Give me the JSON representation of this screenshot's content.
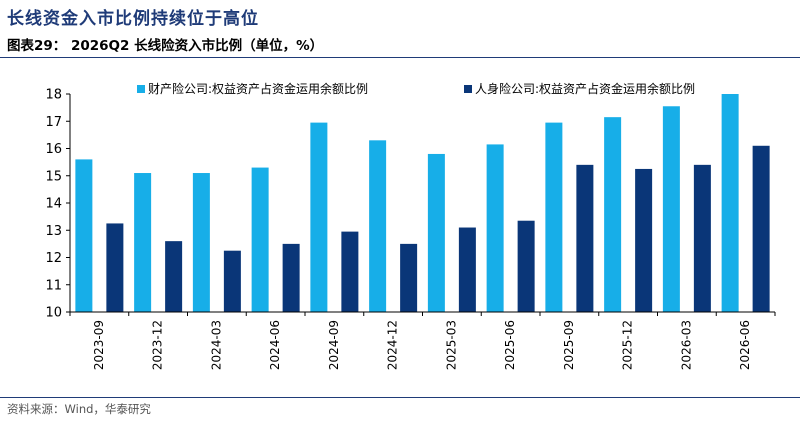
{
  "headline": "长线资金入市比例持续位于高位",
  "figure_caption": "图表29： 2026Q2 长线险资入市比例（单位，%）",
  "source": "资料来源：Wind，华泰研究",
  "colors": {
    "series1": "#17aee8",
    "series2": "#0a3678",
    "rule": "#1f3b78"
  },
  "chart_data": {
    "type": "bar",
    "categories": [
      "2023-09",
      "2023-12",
      "2024-03",
      "2024-06",
      "2024-09",
      "2024-12",
      "2025-03",
      "2025-06",
      "2025-09",
      "2025-12",
      "2026-03",
      "2026-06"
    ],
    "series": [
      {
        "name": "财产险公司:权益资产占资金运用余额比例",
        "values": [
          15.6,
          15.1,
          15.1,
          15.3,
          16.95,
          16.3,
          15.8,
          16.15,
          16.95,
          17.15,
          17.55,
          18.0
        ]
      },
      {
        "name": "人身险公司:权益资产占资金运用余额比例",
        "values": [
          13.25,
          12.6,
          12.25,
          12.5,
          12.95,
          12.5,
          13.1,
          13.35,
          15.4,
          15.25,
          15.4,
          16.1
        ]
      }
    ],
    "ylim": [
      10,
      18
    ],
    "yticks": [
      10,
      11,
      12,
      13,
      14,
      15,
      16,
      17,
      18
    ],
    "legend_position": "top",
    "grid": false
  }
}
